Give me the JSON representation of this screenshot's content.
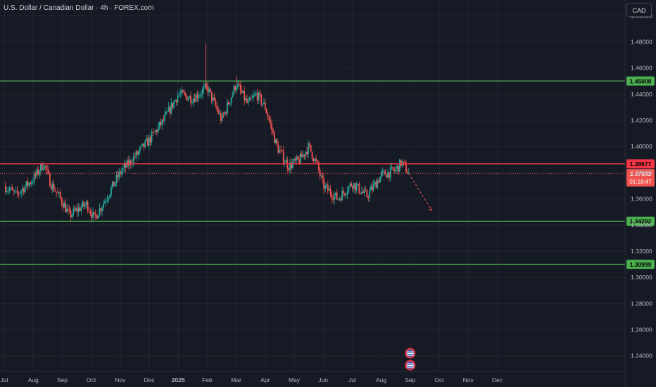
{
  "header": {
    "title": "U.S. Dollar / Canadian Dollar · 4h · FOREX.com",
    "currency_button": "CAD"
  },
  "colors": {
    "background": "#161a25",
    "grid": "#22262f",
    "text": "#b2b5be",
    "up": "#26a69a",
    "down": "#ef5350",
    "support_line": "#4caf50",
    "resistance_line": "#f23645",
    "support_label_bg": "#4caf50",
    "resistance_label_bg": "#f23645"
  },
  "chart_data": {
    "type": "candlestick",
    "x_labels": [
      "Jul",
      "Aug",
      "Sep",
      "Oct",
      "Nov",
      "Dec",
      "2025",
      "Feb",
      "Mar",
      "Apr",
      "May",
      "Jun",
      "Jul",
      "Aug",
      "Sep",
      "Oct",
      "Nov",
      "Dec"
    ],
    "y_ticks": [
      "1.50000",
      "1.48000",
      "1.46000",
      "1.44000",
      "1.42000",
      "1.40000",
      "1.38000",
      "1.36000",
      "1.34000",
      "1.32000",
      "1.30000",
      "1.28000",
      "1.26000",
      "1.24000"
    ],
    "ylim": [
      1.228,
      1.512
    ],
    "price_path": [
      {
        "t": 0,
        "p": 1.37
      },
      {
        "t": 0.4,
        "p": 1.363
      },
      {
        "t": 1,
        "p": 1.375
      },
      {
        "t": 1.35,
        "p": 1.387
      },
      {
        "t": 1.6,
        "p": 1.372
      },
      {
        "t": 2.0,
        "p": 1.358
      },
      {
        "t": 2.25,
        "p": 1.347
      },
      {
        "t": 2.6,
        "p": 1.353
      },
      {
        "t": 2.85,
        "p": 1.356
      },
      {
        "t": 3.1,
        "p": 1.345
      },
      {
        "t": 3.5,
        "p": 1.36
      },
      {
        "t": 4,
        "p": 1.38
      },
      {
        "t": 4.5,
        "p": 1.392
      },
      {
        "t": 5,
        "p": 1.405
      },
      {
        "t": 5.5,
        "p": 1.42
      },
      {
        "t": 6,
        "p": 1.44
      },
      {
        "t": 6.5,
        "p": 1.437
      },
      {
        "t": 7,
        "p": 1.445
      },
      {
        "t": 7.5,
        "p": 1.42
      },
      {
        "t": 8,
        "p": 1.448
      },
      {
        "t": 8.4,
        "p": 1.432
      },
      {
        "t": 8.7,
        "p": 1.44
      },
      {
        "t": 9,
        "p": 1.43
      },
      {
        "t": 9.4,
        "p": 1.4
      },
      {
        "t": 9.8,
        "p": 1.385
      },
      {
        "t": 10.2,
        "p": 1.39
      },
      {
        "t": 10.5,
        "p": 1.4
      },
      {
        "t": 10.8,
        "p": 1.385
      },
      {
        "t": 11,
        "p": 1.37
      },
      {
        "t": 11.5,
        "p": 1.36
      },
      {
        "t": 12,
        "p": 1.372
      },
      {
        "t": 12.5,
        "p": 1.362
      },
      {
        "t": 13,
        "p": 1.378
      },
      {
        "t": 13.5,
        "p": 1.382
      },
      {
        "t": 13.7,
        "p": 1.388
      },
      {
        "t": 13.95,
        "p": 1.3793
      }
    ],
    "spikes": [
      {
        "t": 6.95,
        "p": 1.479
      },
      {
        "t": 8.0,
        "p": 1.454
      }
    ],
    "horizontal_levels": [
      {
        "price": 1.45008,
        "label": "1.45008",
        "kind": "support"
      },
      {
        "price": 1.38677,
        "label": "1.38677",
        "kind": "resistance"
      },
      {
        "price": 1.34292,
        "label": "1.34292",
        "kind": "support"
      },
      {
        "price": 1.30999,
        "label": "1.30999",
        "kind": "support"
      }
    ],
    "current_price": {
      "price": 1.37932,
      "label": "1.37932",
      "countdown": "01:18:47"
    },
    "projection": [
      {
        "t": 13.95,
        "p": 1.3793
      },
      {
        "t": 14.75,
        "p": 1.351
      }
    ],
    "event_icons": [
      "us-flag-icon",
      "us-flag-icon"
    ]
  }
}
